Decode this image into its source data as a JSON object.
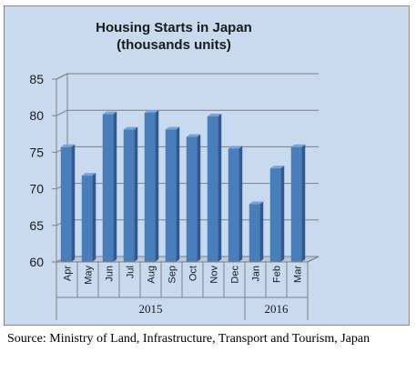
{
  "chart_data": {
    "type": "bar",
    "title_lines": [
      "Housing Starts in Japan",
      "(thousands units)"
    ],
    "categories": [
      "Apr",
      "May",
      "Jun",
      "Jul",
      "Aug",
      "Sep",
      "Oct",
      "Nov",
      "Dec",
      "Jan",
      "Feb",
      "Mar"
    ],
    "values": [
      75.7,
      71.8,
      80.2,
      78.1,
      80.4,
      78.1,
      77.1,
      79.9,
      75.5,
      67.9,
      72.8,
      75.7
    ],
    "ylim": [
      60,
      85
    ],
    "yticks": [
      60,
      65,
      70,
      75,
      80,
      85
    ],
    "groups": [
      {
        "label": "2015",
        "count": 9
      },
      {
        "label": "2016",
        "count": 3
      }
    ],
    "grid": true,
    "legend": "none",
    "colors": {
      "bar_front": "#4a7ebb",
      "bar_side": "#2f5a8f",
      "bar_top": "#7aa3d6",
      "background": "#c9daef"
    }
  },
  "source": "Source: Ministry of Land, Infrastructure, Transport and Tourism, Japan"
}
